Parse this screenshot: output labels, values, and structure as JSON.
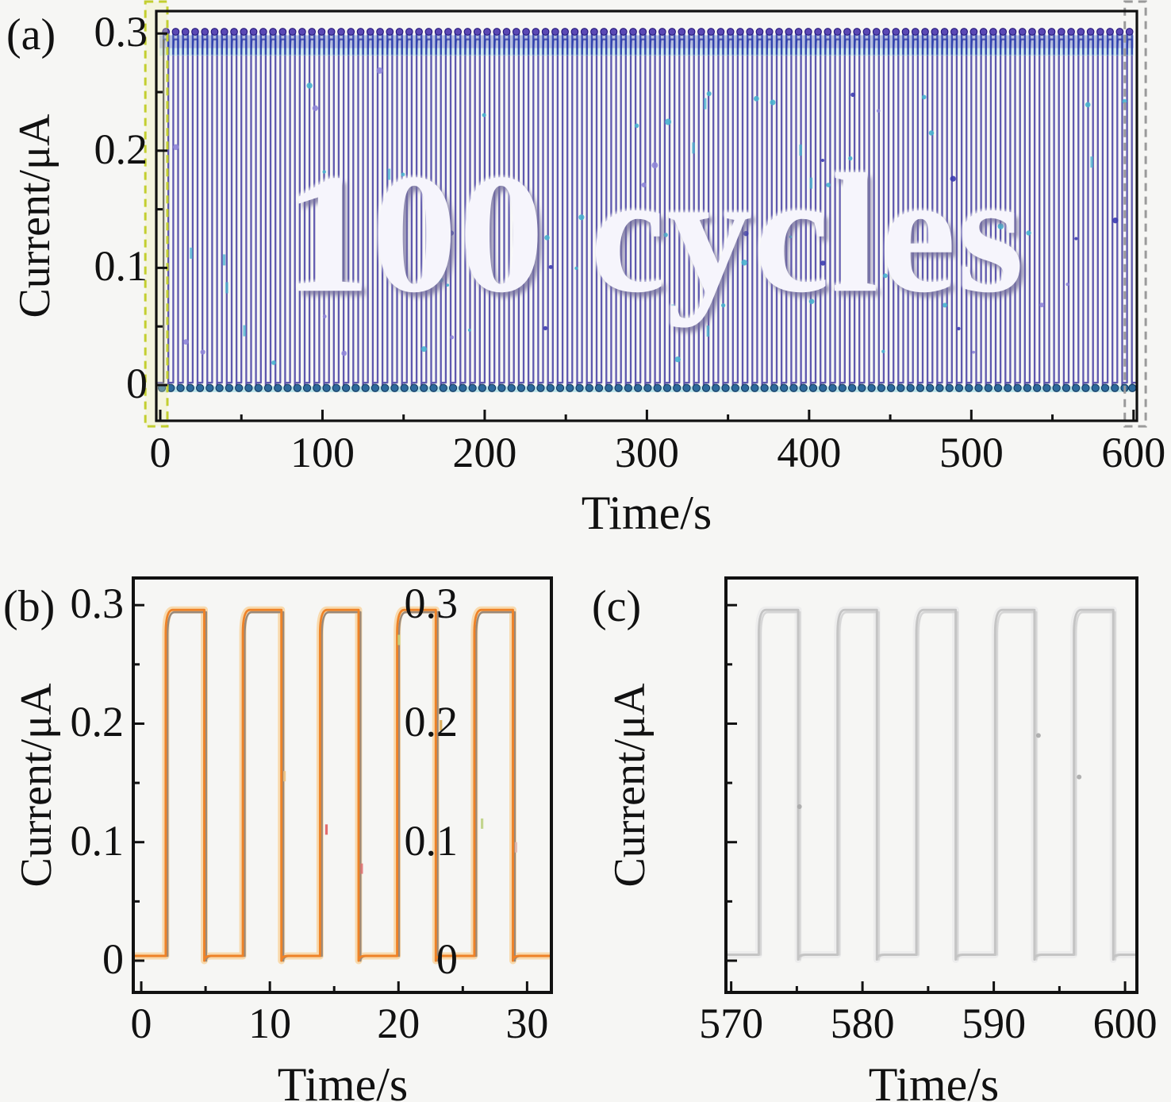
{
  "figure": {
    "background": "#f6f6f4",
    "description_visible_panels": [
      "(a)",
      "(b)",
      "(c)"
    ]
  },
  "chart_data": [
    {
      "panel_label": "(a)",
      "type": "line",
      "watermark": "100 cycles",
      "xlabel": "Time/s",
      "ylabel": "Current/μA",
      "xlim": [
        -2.45,
        602.06
      ],
      "ylim": [
        -0.0305,
        0.3191
      ],
      "xticks": {
        "labels": [
          "0",
          "100",
          "200",
          "300",
          "400",
          "500",
          "600"
        ],
        "values": [
          0,
          100,
          200,
          300,
          400,
          500,
          600
        ],
        "minor": [
          50,
          150,
          250,
          350,
          450,
          550
        ]
      },
      "yticks": {
        "labels": [
          "0",
          "0.1",
          "0.2",
          "0.3"
        ],
        "values": [
          0,
          0.1,
          0.2,
          0.3
        ],
        "minor": [
          0.05,
          0.15,
          0.25
        ]
      },
      "waveform": {
        "cycles": 100,
        "period_s": 6,
        "rise_at_s": 2,
        "fall_at_s": 5,
        "high_uA": 0.295,
        "low_uA": 0.002
      },
      "series_color": "#5e58ae",
      "top_marker_color": "#5a48b4",
      "top_marker_edge": "#27197c",
      "bottom_marker_color": "#2e6a9c",
      "bottom_marker_edge": "#143a60",
      "dense_band_color": "#2b46b4",
      "cyan_accent_color": "#49b2cf",
      "highlight_boxes": [
        {
          "name": "start-region",
          "x0_s": -9.2,
          "x1_s": 4.4,
          "stroke": "#c3cf2f",
          "fill": "rgba(238,238,170,0.30)"
        },
        {
          "name": "end-region",
          "x0_s": 594.6,
          "x1_s": 607.5,
          "stroke": "#9a9a9a",
          "fill": "none"
        }
      ]
    },
    {
      "panel_label": "(b)",
      "type": "line",
      "xlabel": "Time/s",
      "ylabel": "Current/μA",
      "xlim": [
        -0.62,
        31.89
      ],
      "ylim": [
        -0.0268,
        0.3229
      ],
      "xticks": {
        "labels": [
          "0",
          "10",
          "20",
          "30"
        ],
        "values": [
          0,
          10,
          20,
          30
        ],
        "minor": [
          5,
          15,
          25
        ]
      },
      "yticks": {
        "labels": [
          "0",
          "0.1",
          "0.2",
          "0.3"
        ],
        "values": [
          0,
          0.1,
          0.2,
          0.3
        ],
        "minor": [
          0.05,
          0.15,
          0.25
        ]
      },
      "waveform": {
        "cycles": 5,
        "period_s": 6,
        "rise_at_s": 1.9,
        "fall_at_s": 4.9,
        "high_uA": 0.296,
        "low_uA": 0.004
      },
      "series_color": "#ee8227",
      "halo_color": "#f8d7a6",
      "companion_color": "#99897a"
    },
    {
      "panel_label": "(c)",
      "type": "line",
      "xlabel": "Time/s",
      "ylabel": "Current/μA",
      "xlim": [
        569.6,
        600.9
      ],
      "ylim": [
        -0.0268,
        0.3229
      ],
      "xticks": {
        "labels": [
          "570",
          "580",
          "590",
          "600"
        ],
        "values": [
          570,
          580,
          590,
          600
        ],
        "minor": [
          575,
          585,
          595
        ]
      },
      "yticks": {
        "labels": [
          "0",
          "0.1",
          "0.2",
          "0.3"
        ],
        "values": [
          0,
          0.1,
          0.2,
          0.3
        ],
        "minor": [
          0.05,
          0.15,
          0.25
        ]
      },
      "waveform": {
        "cycles": 5,
        "period_s": 6,
        "rise_at_s": 572.1,
        "fall_at_s": 575.1,
        "high_uA": 0.296,
        "low_uA": 0.005
      },
      "series_color": "#c4c4c4",
      "halo_color": "#ececec",
      "companion_color": "#d6d6d6"
    }
  ]
}
